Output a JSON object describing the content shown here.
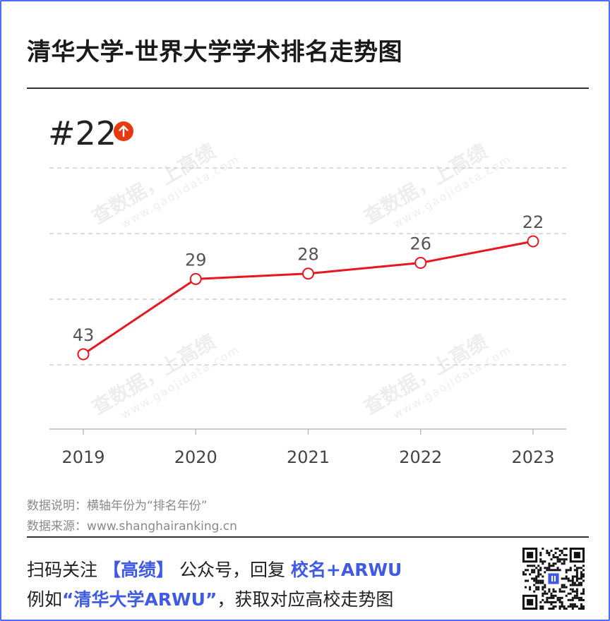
{
  "title": "清华大学-世界大学学术排名走势图",
  "current_rank": "#22",
  "trend_icon": "arrow-up-icon",
  "chart_data": {
    "type": "line",
    "x": [
      "2019",
      "2020",
      "2021",
      "2022",
      "2023"
    ],
    "series": [
      {
        "values": [
          43,
          29,
          28,
          26,
          22
        ],
        "color": "#e8171f"
      }
    ],
    "data_labels": [
      "43",
      "29",
      "28",
      "26",
      "22"
    ],
    "y_axis": "inverted rank",
    "grid": true
  },
  "watermark": {
    "text": "查数据，上高绩",
    "url": "www.gaojidata.com"
  },
  "notes": {
    "axis_note": "数据说明：横轴年份为“排名年份”",
    "source": "数据来源：www.shanghairanking.cn"
  },
  "promo": {
    "line1_prefix": "扫码关注",
    "brand": "【高绩】",
    "line1_mid": "公众号，回复",
    "keyword": "校名+ARWU",
    "line2_prefix": "例如",
    "example": "“清华大学ARWU”",
    "line2_suffix": "，获取对应高校走势图"
  },
  "colors": {
    "accent_blue": "#3f5be6",
    "line_red": "#e8171f",
    "badge_red": "#e8380d",
    "border_blue": "#4a6cf7"
  }
}
